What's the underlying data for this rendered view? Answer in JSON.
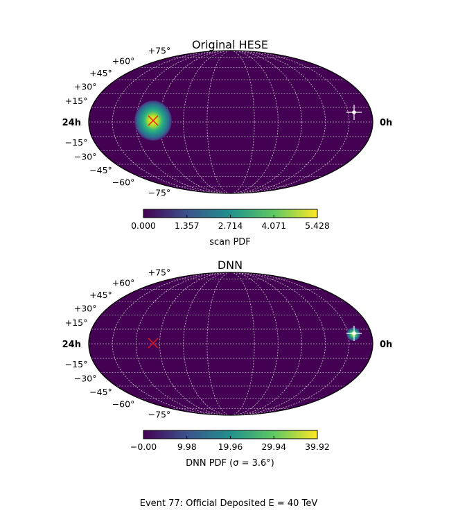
{
  "chart_data": [
    {
      "type": "heatmap",
      "projection": "mollweide",
      "title": "Original HESE",
      "ra_labels": {
        "left": "24h",
        "right": "0h"
      },
      "dec_labels": [
        "+75°",
        "+60°",
        "+45°",
        "+30°",
        "+15°",
        "−15°",
        "−30°",
        "−45°",
        "−60°",
        "−75°"
      ],
      "hotspot": {
        "ra_hours": 17.6,
        "dec_deg": 0,
        "sigma_deg": 7,
        "peak": 5.428
      },
      "red_marker": {
        "ra_hours": 17.6,
        "dec_deg": 0
      },
      "white_marker": {
        "ra_hours": 1.25,
        "dec_deg": 9
      },
      "colorbar": {
        "label": "scan PDF",
        "ticks": [
          "0.000",
          "1.357",
          "2.714",
          "4.071",
          "5.428"
        ],
        "min": 0.0,
        "max": 5.428
      },
      "grid": true
    },
    {
      "type": "heatmap",
      "projection": "mollweide",
      "title": "DNN",
      "ra_labels": {
        "left": "24h",
        "right": "0h"
      },
      "dec_labels": [
        "+75°",
        "+60°",
        "+45°",
        "+30°",
        "+15°",
        "−15°",
        "−30°",
        "−45°",
        "−60°",
        "−75°"
      ],
      "hotspot": {
        "ra_hours": 1.2,
        "dec_deg": 8,
        "sigma_deg": 3.6,
        "peak": 39.92
      },
      "red_marker": {
        "ra_hours": 17.6,
        "dec_deg": 0
      },
      "white_marker": {
        "ra_hours": 1.25,
        "dec_deg": 9
      },
      "colorbar": {
        "label": "DNN PDF (σ = 3.6°)",
        "ticks": [
          "−0.00",
          "9.98",
          "19.96",
          "29.94",
          "39.92"
        ],
        "min": 0.0,
        "max": 39.92
      },
      "grid": true
    }
  ],
  "caption": "Event 77:  Official Deposited  E = 40 TeV",
  "colors": {
    "background_low": "#440154",
    "viridis": [
      "#440154",
      "#3b528b",
      "#21918c",
      "#5ec962",
      "#fde725"
    ],
    "marker_red": "#e41a1c",
    "marker_white": "#ffffff"
  }
}
